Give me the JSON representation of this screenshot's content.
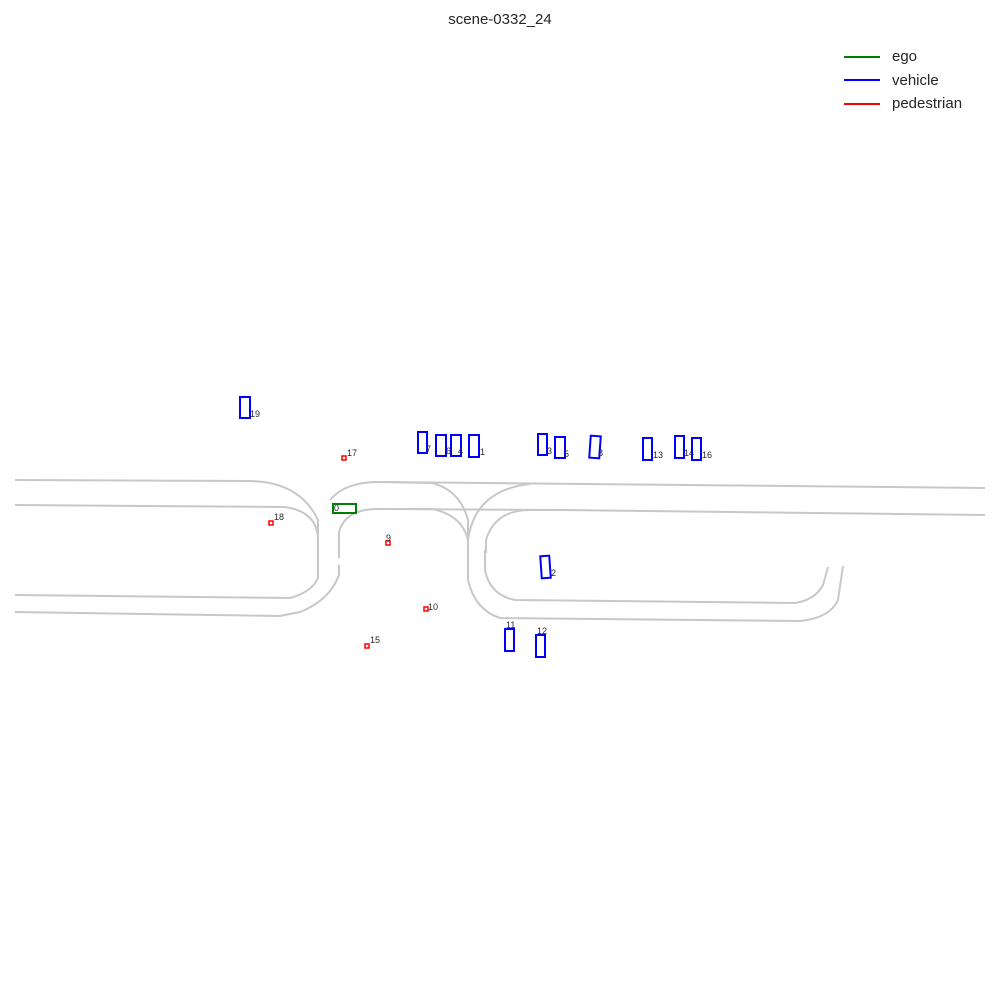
{
  "title": "scene-0332_24",
  "colors": {
    "ego": "#008000",
    "vehicle": "#0000ff",
    "pedestrian": "#ff0000",
    "road": "#c8c8c8"
  },
  "legend": [
    {
      "key": "ego",
      "label": "ego"
    },
    {
      "key": "vehicle",
      "label": "vehicle"
    },
    {
      "key": "pedestrian",
      "label": "pedestrian"
    }
  ],
  "agents": [
    {
      "id": "0",
      "type": "ego"
    },
    {
      "id": "1",
      "type": "vehicle"
    },
    {
      "id": "2",
      "type": "vehicle"
    },
    {
      "id": "3",
      "type": "vehicle"
    },
    {
      "id": "4",
      "type": "vehicle"
    },
    {
      "id": "5",
      "type": "vehicle"
    },
    {
      "id": "6",
      "type": "vehicle"
    },
    {
      "id": "7",
      "type": "vehicle"
    },
    {
      "id": "8",
      "type": "vehicle"
    },
    {
      "id": "9",
      "type": "pedestrian"
    },
    {
      "id": "10",
      "type": "pedestrian"
    },
    {
      "id": "11",
      "type": "vehicle"
    },
    {
      "id": "12",
      "type": "vehicle"
    },
    {
      "id": "13",
      "type": "vehicle"
    },
    {
      "id": "14",
      "type": "vehicle"
    },
    {
      "id": "15",
      "type": "pedestrian"
    },
    {
      "id": "16",
      "type": "vehicle"
    },
    {
      "id": "17",
      "type": "pedestrian"
    },
    {
      "id": "18",
      "type": "pedestrian"
    },
    {
      "id": "19",
      "type": "vehicle"
    }
  ]
}
